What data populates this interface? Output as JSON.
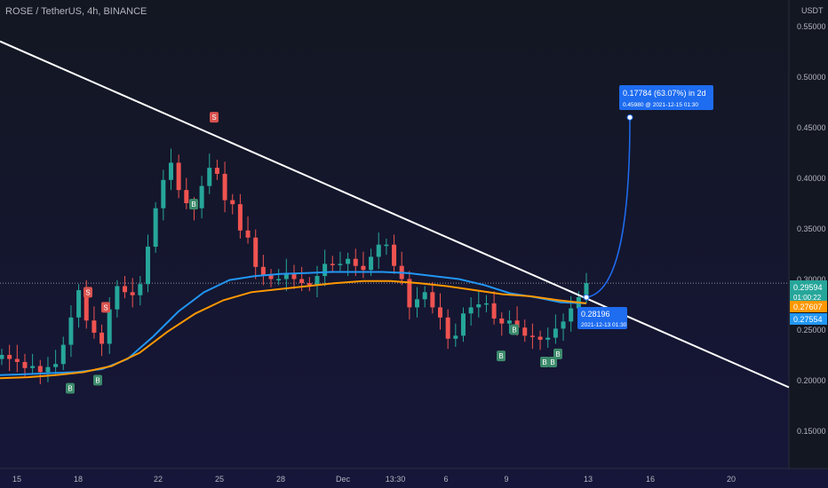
{
  "header": {
    "symbol": "ROSE / TetherUS, 4h, BINANCE"
  },
  "axis_unit": "USDT",
  "colors": {
    "bull": "#26a69a",
    "bear": "#ef5350",
    "trend": "#ffffff",
    "ema_blue": "#2196f3",
    "ema_orange": "#ff9800",
    "callout": "#1e6cf0"
  },
  "chart_data": {
    "type": "candlestick",
    "title": "ROSE / TetherUS, 4h, BINANCE",
    "ylabel": "USDT",
    "ylim": [
      0.11,
      0.57
    ],
    "y_ticks": [
      "0.55000",
      "0.50000",
      "0.45000",
      "0.40000",
      "0.35000",
      "0.30000",
      "0.25000",
      "0.20000",
      "0.15000"
    ],
    "x_ticks": [
      "15",
      "18",
      "22",
      "25",
      "28",
      "Dec",
      "13:30",
      "6",
      "9",
      "13",
      "16",
      "20"
    ],
    "price_labels": {
      "last": "0.29594",
      "countdown": "01:00:22",
      "orange": "0.27607",
      "blue": "0.27554"
    },
    "series": [
      {
        "name": "",
        "role": "price",
        "values": [
          0.225,
          0.221,
          0.218,
          0.212,
          0.214,
          0.208,
          0.213,
          0.216,
          0.235,
          0.262,
          0.289,
          0.259,
          0.247,
          0.236,
          0.27,
          0.293,
          0.287,
          0.284,
          0.295,
          0.332,
          0.37,
          0.398,
          0.415,
          0.388,
          0.375,
          0.37,
          0.392,
          0.41,
          0.404,
          0.378,
          0.374,
          0.348,
          0.341,
          0.312,
          0.304,
          0.3,
          0.3,
          0.306,
          0.3,
          0.296,
          0.294,
          0.303,
          0.315,
          0.314,
          0.315,
          0.32,
          0.313,
          0.309,
          0.322,
          0.334,
          0.334,
          0.313,
          0.3,
          0.272,
          0.28,
          0.287,
          0.272,
          0.262,
          0.241,
          0.244,
          0.266,
          0.272,
          0.275,
          0.276,
          0.261,
          0.256,
          0.259,
          0.252,
          0.244,
          0.243,
          0.24,
          0.242,
          0.251,
          0.258,
          0.271,
          0.282,
          0.296
        ]
      },
      {
        "name": "",
        "role": "ema_blue",
        "values": [
          0.205,
          0.206,
          0.207,
          0.208,
          0.211,
          0.221,
          0.243,
          0.268,
          0.287,
          0.299,
          0.303,
          0.305,
          0.306,
          0.307,
          0.307,
          0.307,
          0.306,
          0.303,
          0.3,
          0.294,
          0.286,
          0.282,
          0.277,
          0.276
        ]
      },
      {
        "name": "",
        "role": "ema_orange",
        "values": [
          0.202,
          0.203,
          0.205,
          0.208,
          0.214,
          0.227,
          0.248,
          0.266,
          0.279,
          0.287,
          0.29,
          0.293,
          0.296,
          0.298,
          0.298,
          0.296,
          0.293,
          0.289,
          0.285,
          0.283,
          0.279,
          0.276
        ]
      }
    ],
    "trendline": {
      "from": [
        0,
        0.535
      ],
      "to": [
        1,
        0.193
      ]
    },
    "markers": [
      {
        "label": "B",
        "kind": "buy"
      },
      {
        "label": "B",
        "kind": "buy"
      },
      {
        "label": "S",
        "kind": "sell"
      },
      {
        "label": "S",
        "kind": "sell"
      },
      {
        "label": "S",
        "kind": "sell"
      },
      {
        "label": "B",
        "kind": "buy"
      },
      {
        "label": "B",
        "kind": "buy"
      },
      {
        "label": "B",
        "kind": "buy"
      },
      {
        "label": "B",
        "kind": "buy"
      },
      {
        "label": "B",
        "kind": "buy"
      },
      {
        "label": "B",
        "kind": "buy"
      }
    ],
    "annotations": {
      "breakout": {
        "price": "0.28196",
        "datetime": "2021-12-13 01:30"
      },
      "target": {
        "change": "0.17784 (63.07%) in 2d",
        "detail": "0.45980 @ 2021-12-15  01:30"
      }
    }
  }
}
